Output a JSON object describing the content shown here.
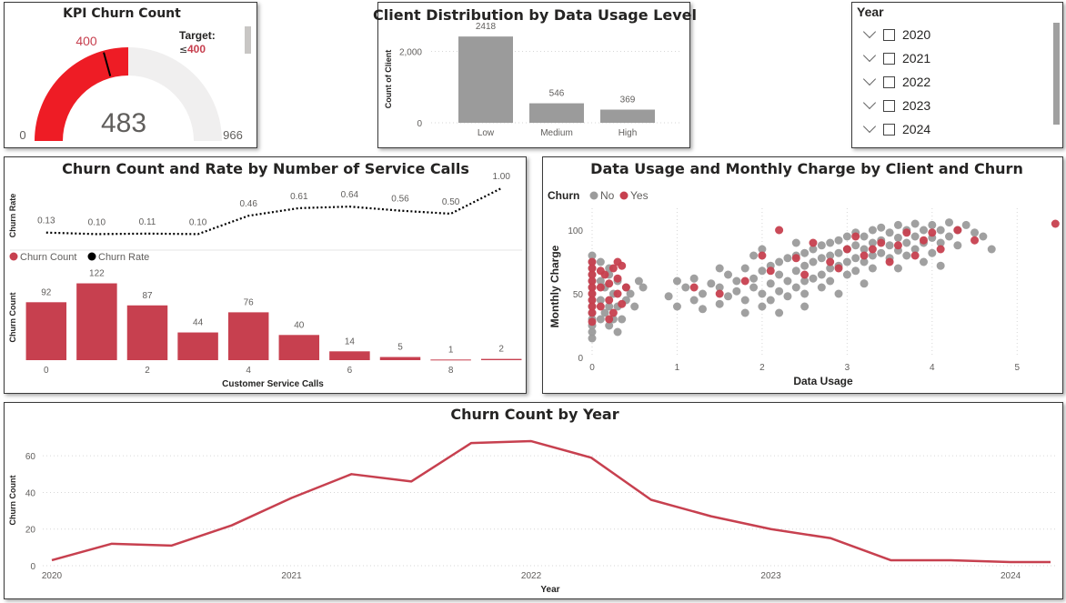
{
  "colors": {
    "red": "#c7404f",
    "gauge_red": "#ee1c25",
    "gray": "#9b9b9b",
    "light": "#f0efef",
    "target_red": "#c7404f"
  },
  "kpi": {
    "title": "KPI Churn Count",
    "value": 483,
    "value_label": "483",
    "min": 0,
    "min_label": "0",
    "max": 966,
    "max_label": "966",
    "target": 400,
    "target_label": "400",
    "target_caption": "Target:",
    "target_prefix": "≤",
    "target_value": "400"
  },
  "year_slicer": {
    "title": "Year",
    "items": [
      {
        "label": "2020"
      },
      {
        "label": "2021"
      },
      {
        "label": "2022"
      },
      {
        "label": "2023"
      },
      {
        "label": "2024"
      }
    ]
  },
  "usage_chart": {
    "title": "Client Distribution by Data Usage Level",
    "chart_data": {
      "type": "bar",
      "categories": [
        "Low",
        "Medium",
        "High"
      ],
      "values": [
        2418,
        546,
        369
      ],
      "data_labels": [
        "2418",
        "546",
        "369"
      ],
      "ylabel": "Count of Client",
      "ylim": [
        0,
        2600
      ],
      "yticks": [
        {
          "v": 0,
          "label": "0"
        },
        {
          "v": 2000,
          "label": "2,000"
        }
      ]
    }
  },
  "service_chart": {
    "title": "Churn Count and Rate by Number of Service Calls",
    "legend": [
      {
        "name": "Churn Count",
        "color": "#c7404f"
      },
      {
        "name": "Churn Rate",
        "color": "#000000"
      }
    ],
    "chart_data": {
      "type": "bar",
      "x": [
        0,
        1,
        2,
        3,
        4,
        5,
        6,
        7,
        8,
        9
      ],
      "x_tick_labels": [
        {
          "i": 0,
          "label": "0"
        },
        {
          "i": 2,
          "label": "2"
        },
        {
          "i": 4,
          "label": "4"
        },
        {
          "i": 6,
          "label": "6"
        },
        {
          "i": 8,
          "label": "8"
        }
      ],
      "series": [
        {
          "name": "Churn Count",
          "values": [
            92,
            122,
            87,
            44,
            76,
            40,
            14,
            5,
            1,
            2
          ],
          "labels": [
            "92",
            "122",
            "87",
            "44",
            "76",
            "40",
            "14",
            "5",
            "1",
            "2"
          ]
        },
        {
          "name": "Churn Rate",
          "values": [
            0.13,
            0.1,
            0.11,
            0.1,
            0.46,
            0.61,
            0.64,
            0.56,
            0.5,
            1.0
          ],
          "labels": [
            "0.13",
            "0.10",
            "0.11",
            "0.10",
            "0.46",
            "0.61",
            "0.64",
            "0.56",
            "0.50",
            "1.00"
          ]
        }
      ],
      "xlabel": "Customer Service Calls",
      "ylabel_bars": "Churn Count",
      "ylabel_line": "Churn Rate"
    }
  },
  "scatter_chart": {
    "title": "Data Usage and Monthly Charge by Client and Churn",
    "legend_title": "Churn",
    "legend": [
      {
        "name": "No",
        "color": "#9b9b9b"
      },
      {
        "name": "Yes",
        "color": "#c7404f"
      }
    ],
    "chart_data": {
      "type": "scatter",
      "xlabel": "Data Usage",
      "ylabel": "Monthly Charge",
      "xlim": [
        0,
        5.5
      ],
      "ylim": [
        0,
        110
      ],
      "xticks": [
        {
          "v": 0,
          "label": "0"
        },
        {
          "v": 1,
          "label": "1"
        },
        {
          "v": 2,
          "label": "2"
        },
        {
          "v": 3,
          "label": "3"
        },
        {
          "v": 4,
          "label": "4"
        },
        {
          "v": 5,
          "label": "5"
        }
      ],
      "yticks": [
        {
          "v": 0,
          "label": "0"
        },
        {
          "v": 50,
          "label": "50"
        },
        {
          "v": 100,
          "label": "100"
        }
      ],
      "series": [
        {
          "name": "No",
          "points": [
            [
              0,
              20
            ],
            [
              0,
              30
            ],
            [
              0,
              40
            ],
            [
              0,
              50
            ],
            [
              0,
              60
            ],
            [
              0,
              70
            ],
            [
              0,
              80
            ],
            [
              0,
              25
            ],
            [
              0,
              35
            ],
            [
              0,
              45
            ],
            [
              0,
              55
            ],
            [
              0,
              65
            ],
            [
              0,
              75
            ],
            [
              0,
              15
            ],
            [
              0.1,
              30
            ],
            [
              0.1,
              45
            ],
            [
              0.1,
              60
            ],
            [
              0.15,
              35
            ],
            [
              0.15,
              55
            ],
            [
              0.2,
              25
            ],
            [
              0.2,
              40
            ],
            [
              0.2,
              65
            ],
            [
              0.25,
              30
            ],
            [
              0.25,
              50
            ],
            [
              0.3,
              40
            ],
            [
              0.3,
              60
            ],
            [
              0.35,
              30
            ],
            [
              0.4,
              45
            ],
            [
              0.4,
              55
            ],
            [
              0.45,
              50
            ],
            [
              0.5,
              40
            ],
            [
              0.55,
              60
            ],
            [
              0.6,
              55
            ],
            [
              0.3,
              20
            ],
            [
              0.2,
              70
            ],
            [
              0.1,
              75
            ],
            [
              0.9,
              48
            ],
            [
              1.0,
              60
            ],
            [
              1.0,
              40
            ],
            [
              1.1,
              55
            ],
            [
              1.2,
              45
            ],
            [
              1.2,
              62
            ],
            [
              1.3,
              50
            ],
            [
              1.3,
              38
            ],
            [
              1.4,
              58
            ],
            [
              1.5,
              55
            ],
            [
              1.5,
              42
            ],
            [
              1.6,
              65
            ],
            [
              1.6,
              48
            ],
            [
              1.7,
              60
            ],
            [
              1.7,
              52
            ],
            [
              1.8,
              70
            ],
            [
              1.8,
              45
            ],
            [
              1.9,
              62
            ],
            [
              1.9,
              55
            ],
            [
              2.0,
              68
            ],
            [
              2.0,
              50
            ],
            [
              2.0,
              40
            ],
            [
              2.1,
              72
            ],
            [
              2.1,
              58
            ],
            [
              2.1,
              45
            ],
            [
              2.2,
              75
            ],
            [
              2.2,
              65
            ],
            [
              2.2,
              52
            ],
            [
              2.3,
              78
            ],
            [
              2.3,
              60
            ],
            [
              2.3,
              48
            ],
            [
              2.4,
              80
            ],
            [
              2.4,
              68
            ],
            [
              2.4,
              55
            ],
            [
              2.5,
              82
            ],
            [
              2.5,
              72
            ],
            [
              2.5,
              60
            ],
            [
              2.5,
              50
            ],
            [
              2.6,
              85
            ],
            [
              2.6,
              75
            ],
            [
              2.6,
              62
            ],
            [
              2.7,
              88
            ],
            [
              2.7,
              78
            ],
            [
              2.7,
              65
            ],
            [
              2.7,
              55
            ],
            [
              2.8,
              90
            ],
            [
              2.8,
              80
            ],
            [
              2.8,
              70
            ],
            [
              2.8,
              60
            ],
            [
              2.9,
              92
            ],
            [
              2.9,
              82
            ],
            [
              2.9,
              72
            ],
            [
              3.0,
              95
            ],
            [
              3.0,
              85
            ],
            [
              3.0,
              75
            ],
            [
              3.0,
              65
            ],
            [
              3.1,
              98
            ],
            [
              3.1,
              88
            ],
            [
              3.1,
              78
            ],
            [
              3.1,
              68
            ],
            [
              3.2,
              95
            ],
            [
              3.2,
              85
            ],
            [
              3.2,
              75
            ],
            [
              3.3,
              100
            ],
            [
              3.3,
              90
            ],
            [
              3.3,
              80
            ],
            [
              3.3,
              70
            ],
            [
              3.4,
              102
            ],
            [
              3.4,
              92
            ],
            [
              3.4,
              82
            ],
            [
              3.5,
              98
            ],
            [
              3.5,
              88
            ],
            [
              3.5,
              78
            ],
            [
              3.6,
              104
            ],
            [
              3.6,
              94
            ],
            [
              3.6,
              84
            ],
            [
              3.7,
              100
            ],
            [
              3.7,
              90
            ],
            [
              3.7,
              80
            ],
            [
              3.8,
              105
            ],
            [
              3.8,
              95
            ],
            [
              3.8,
              85
            ],
            [
              3.9,
              100
            ],
            [
              3.9,
              90
            ],
            [
              4.0,
              104
            ],
            [
              4.0,
              94
            ],
            [
              4.0,
              82
            ],
            [
              4.1,
              100
            ],
            [
              4.1,
              90
            ],
            [
              4.2,
              106
            ],
            [
              4.2,
              95
            ],
            [
              4.3,
              100
            ],
            [
              4.3,
              88
            ],
            [
              4.4,
              104
            ],
            [
              4.5,
              98
            ],
            [
              4.6,
              95
            ],
            [
              4.7,
              85
            ],
            [
              1.5,
              70
            ],
            [
              1.8,
              35
            ],
            [
              2.2,
              35
            ],
            [
              2.5,
              40
            ],
            [
              2.9,
              50
            ],
            [
              3.2,
              58
            ],
            [
              3.6,
              70
            ],
            [
              3.9,
              75
            ],
            [
              4.1,
              72
            ],
            [
              2.0,
              85
            ],
            [
              2.4,
              90
            ],
            [
              1.9,
              80
            ]
          ]
        },
        {
          "name": "Yes",
          "points": [
            [
              0,
              35
            ],
            [
              0,
              45
            ],
            [
              0,
              55
            ],
            [
              0,
              65
            ],
            [
              0,
              75
            ],
            [
              0,
              28
            ],
            [
              0,
              50
            ],
            [
              0,
              60
            ],
            [
              0,
              70
            ],
            [
              0,
              40
            ],
            [
              0.1,
              40
            ],
            [
              0.1,
              55
            ],
            [
              0.15,
              65
            ],
            [
              0.2,
              45
            ],
            [
              0.2,
              58
            ],
            [
              0.25,
              70
            ],
            [
              0.25,
              35
            ],
            [
              0.3,
              50
            ],
            [
              0.3,
              62
            ],
            [
              0.35,
              72
            ],
            [
              0.35,
              42
            ],
            [
              0.4,
              55
            ],
            [
              0.2,
              30
            ],
            [
              0.3,
              75
            ],
            [
              0.1,
              68
            ],
            [
              1.2,
              55
            ],
            [
              1.8,
              60
            ],
            [
              2.0,
              80
            ],
            [
              2.2,
              100
            ],
            [
              2.4,
              78
            ],
            [
              2.5,
              65
            ],
            [
              2.6,
              90
            ],
            [
              2.8,
              75
            ],
            [
              3.0,
              85
            ],
            [
              3.1,
              95
            ],
            [
              3.2,
              80
            ],
            [
              3.4,
              90
            ],
            [
              3.5,
              75
            ],
            [
              3.6,
              88
            ],
            [
              3.7,
              98
            ],
            [
              3.8,
              80
            ],
            [
              3.9,
              92
            ],
            [
              4.0,
              98
            ],
            [
              4.1,
              85
            ],
            [
              4.3,
              100
            ],
            [
              4.5,
              92
            ],
            [
              1.5,
              50
            ],
            [
              2.1,
              68
            ],
            [
              2.9,
              70
            ],
            [
              3.3,
              85
            ],
            [
              5.45,
              105
            ]
          ]
        }
      ]
    }
  },
  "year_chart": {
    "title": "Churn Count by Year",
    "chart_data": {
      "type": "line",
      "xlabel": "Year",
      "ylabel": "Churn Count",
      "x_start": "2020-01",
      "x_end": "2024-03",
      "xticks": [
        {
          "label": "2020"
        },
        {
          "label": "2021"
        },
        {
          "label": "2022"
        },
        {
          "label": "2023"
        },
        {
          "label": "2024"
        }
      ],
      "ylim": [
        0,
        72
      ],
      "yticks": [
        {
          "v": 0,
          "label": "0"
        },
        {
          "v": 20,
          "label": "20"
        },
        {
          "v": 40,
          "label": "40"
        },
        {
          "v": 60,
          "label": "60"
        }
      ],
      "series": [
        {
          "name": "Churn Count",
          "x": [
            "2020-01",
            "2020-04",
            "2020-07",
            "2020-10",
            "2021-01",
            "2021-04",
            "2021-07",
            "2021-10",
            "2022-01",
            "2022-04",
            "2022-07",
            "2022-10",
            "2023-01",
            "2023-04",
            "2023-07",
            "2023-10",
            "2024-01",
            "2024-03"
          ],
          "values": [
            3,
            12,
            11,
            22,
            37,
            50,
            46,
            67,
            68,
            59,
            36,
            27,
            20,
            15,
            3,
            3,
            2,
            2
          ]
        }
      ]
    }
  }
}
